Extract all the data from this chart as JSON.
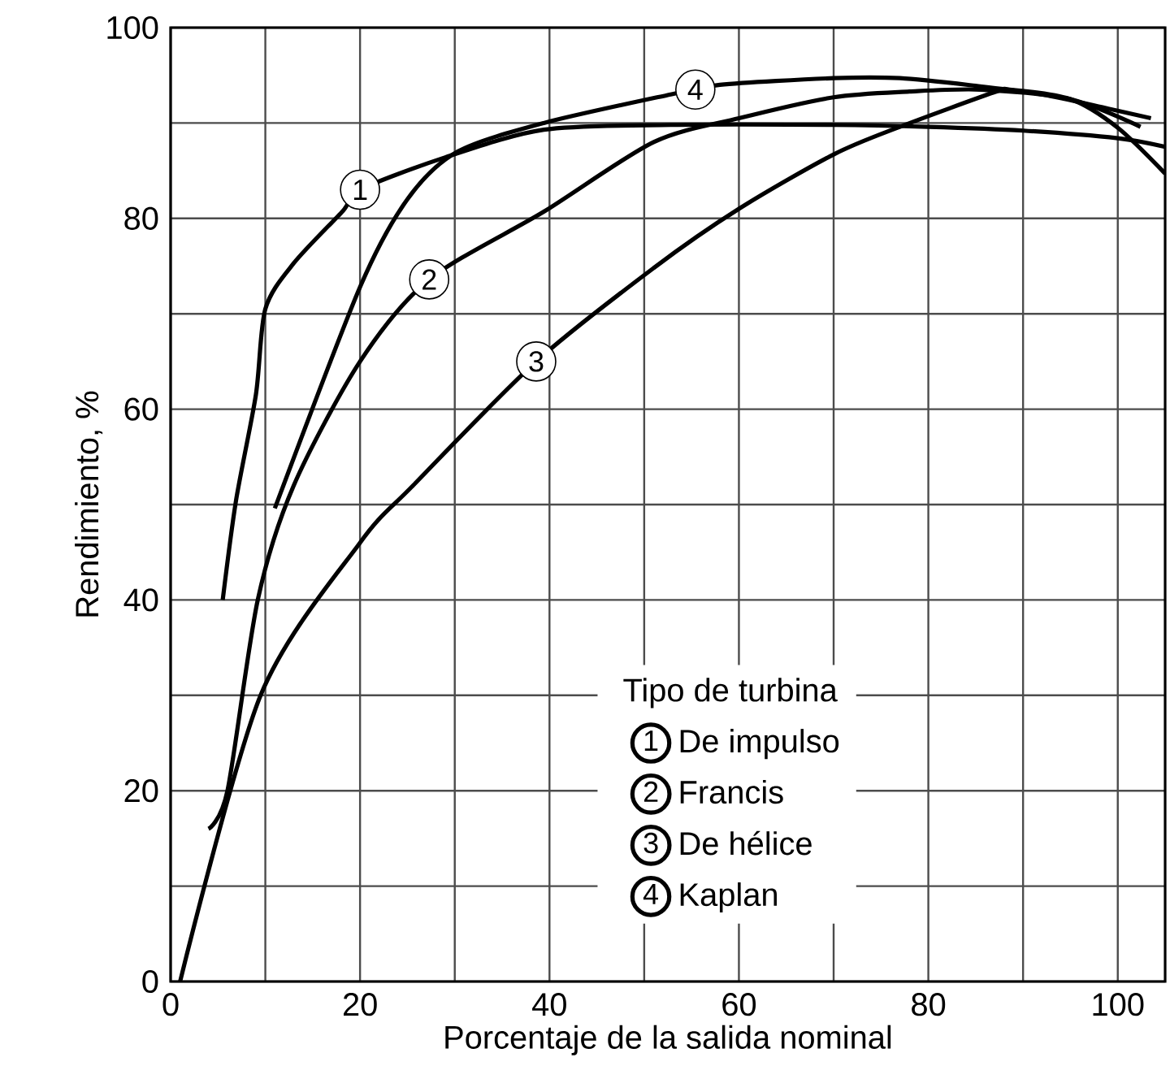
{
  "chart_data": {
    "type": "line",
    "xlabel": "Porcentaje de la salida nominal",
    "ylabel": "Rendimiento, %",
    "legend_title": "Tipo de turbina",
    "xlim": [
      0,
      105
    ],
    "ylim": [
      0,
      100
    ],
    "xticks": [
      0,
      20,
      40,
      60,
      80,
      100
    ],
    "yticks": [
      0,
      20,
      40,
      60,
      80,
      100
    ],
    "grid": true,
    "legend": "bottom right",
    "marker": "none",
    "line_style": "solid",
    "series": [
      {
        "name": "De impulso",
        "color": "#000000",
        "x": [
          5.5,
          6.9,
          9,
          10,
          13,
          18.2,
          20,
          29,
          39.4,
          52.8,
          70,
          80,
          90,
          100,
          105
        ],
        "values": [
          40,
          50.4,
          61.5,
          70.5,
          75.3,
          80.8,
          83,
          86.4,
          89.3,
          89.8,
          89.8,
          89.6,
          89.2,
          88.4,
          87.5
        ]
      },
      {
        "name": "Francis",
        "color": "#000000",
        "x": [
          4,
          6,
          9.2,
          13,
          20,
          27.3,
          39.4,
          51,
          60,
          70,
          78,
          85.6,
          95,
          102.4
        ],
        "values": [
          16,
          20,
          40,
          52,
          65,
          73.6,
          80.7,
          88,
          90.5,
          92.7,
          93.3,
          93.5,
          92.5,
          89.6
        ]
      },
      {
        "name": "De hélice",
        "color": "#000000",
        "x": [
          1,
          9.5,
          20,
          25.6,
          38.6,
          51,
          60,
          70,
          77,
          86.9,
          88.6,
          95,
          100,
          105
        ],
        "values": [
          0,
          30,
          46,
          52,
          65,
          74.8,
          81,
          86.7,
          89.6,
          93.2,
          93.5,
          92.5,
          89.5,
          84.7
        ]
      },
      {
        "name": "Kaplan",
        "color": "#000000",
        "x": [
          11,
          20,
          25,
          30.3,
          39.4,
          52.8,
          58,
          70,
          77,
          85,
          92,
          99,
          103.5
        ],
        "values": [
          49.6,
          72.8,
          82,
          87,
          90,
          93,
          94,
          94.7,
          94.7,
          93.9,
          93,
          91.5,
          90.5
        ]
      }
    ],
    "annotations": [
      {
        "text": "1",
        "x": 20,
        "y": 83
      },
      {
        "text": "2",
        "x": 27.3,
        "y": 73.6
      },
      {
        "text": "3",
        "x": 38.6,
        "y": 65
      },
      {
        "text": "4",
        "x": 55.4,
        "y": 93.5
      }
    ]
  }
}
